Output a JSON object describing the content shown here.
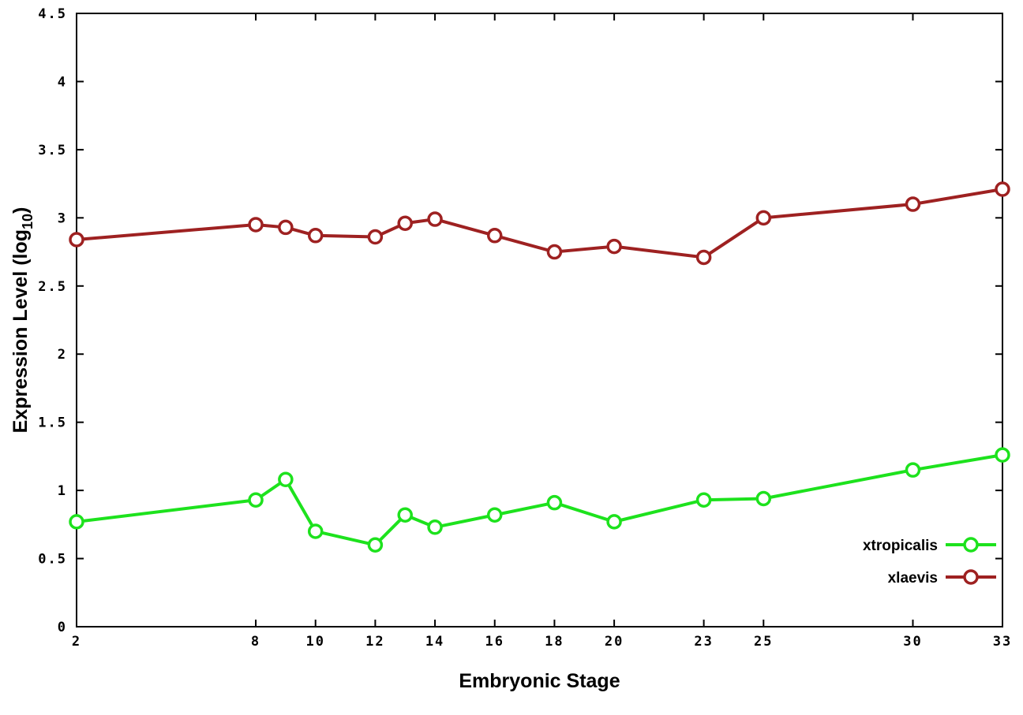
{
  "chart_data": {
    "type": "line",
    "title": "",
    "xlabel": "Embryonic Stage",
    "ylabel": "Expression Level (log10)",
    "ylabel_parts": {
      "main": "Expression Level (log",
      "sub": "10",
      "end": ")"
    },
    "xlim": [
      2,
      33
    ],
    "ylim": [
      0,
      4.5
    ],
    "x_ticks": [
      2,
      8,
      10,
      12,
      14,
      16,
      18,
      20,
      23,
      25,
      30,
      33
    ],
    "y_ticks": [
      0,
      0.5,
      1,
      1.5,
      2,
      2.5,
      3,
      3.5,
      4,
      4.5
    ],
    "grid": false,
    "legend_position": "bottom-right",
    "x": [
      2,
      8,
      9,
      10,
      12,
      13,
      14,
      16,
      18,
      20,
      23,
      25,
      30,
      33
    ],
    "series": [
      {
        "name": "xtropicalis",
        "color": "#1de21d",
        "marker": "open-circle",
        "values": [
          0.77,
          0.93,
          1.08,
          0.7,
          0.6,
          0.82,
          0.73,
          0.82,
          0.91,
          0.77,
          0.93,
          0.94,
          1.15,
          1.26
        ]
      },
      {
        "name": "xlaevis",
        "color": "#9e2121",
        "marker": "open-circle",
        "values": [
          2.84,
          2.95,
          2.93,
          2.87,
          2.86,
          2.96,
          2.99,
          2.87,
          2.75,
          2.79,
          2.71,
          3.0,
          3.1,
          3.21
        ]
      }
    ]
  }
}
